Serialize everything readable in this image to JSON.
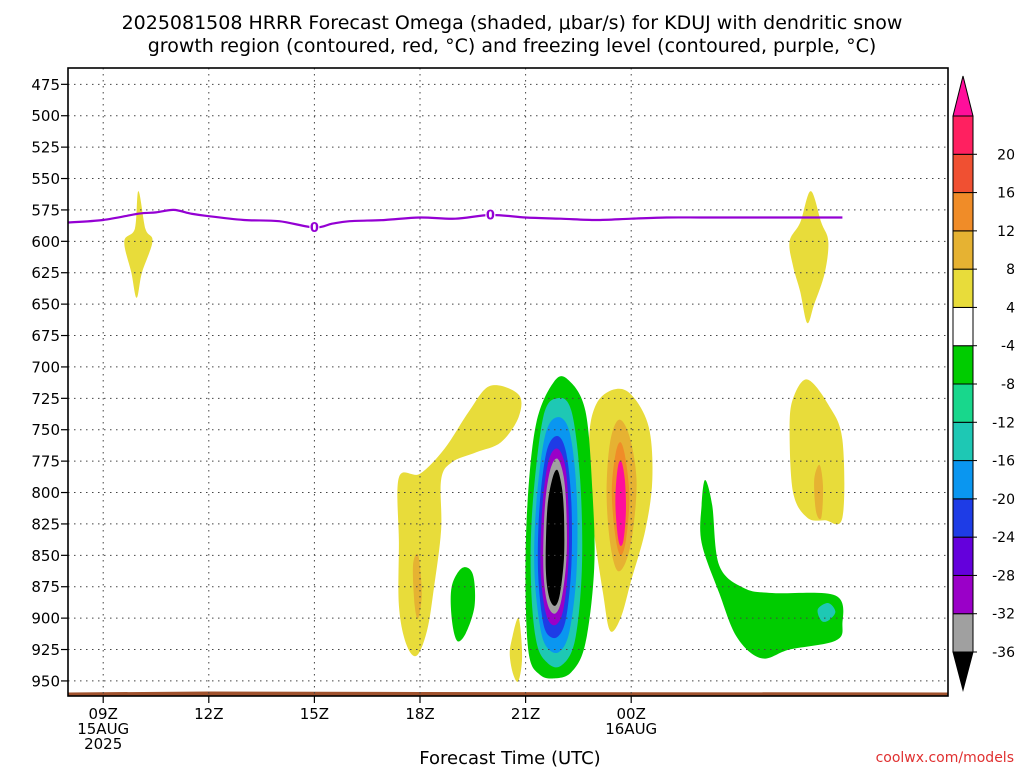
{
  "chart_data": {
    "type": "heatmap",
    "title_lines": [
      "2025081508 HRRR Forecast Omega (shaded, μbar/s) for KDUJ with dendritic snow",
      "growth region (contoured, red, °C) and freezing level (contoured, purple, °C)"
    ],
    "xlabel": "Forecast Time (UTC)",
    "xlim": [
      8,
      33
    ],
    "ylim": [
      962,
      462
    ],
    "y_scale": "linear pressure (hPa), inverted",
    "x_ticks": [
      {
        "x": 9,
        "lines": [
          "09Z",
          "15AUG",
          "2025"
        ]
      },
      {
        "x": 12,
        "lines": [
          "12Z"
        ]
      },
      {
        "x": 15,
        "lines": [
          "15Z"
        ]
      },
      {
        "x": 18,
        "lines": [
          "18Z"
        ]
      },
      {
        "x": 21,
        "lines": [
          "21Z"
        ]
      },
      {
        "x": 24,
        "lines": [
          "00Z",
          "16AUG"
        ]
      }
    ],
    "y_ticks": [
      475,
      500,
      525,
      550,
      575,
      600,
      625,
      650,
      675,
      700,
      725,
      750,
      775,
      800,
      825,
      850,
      875,
      900,
      925,
      950
    ],
    "grid": true,
    "colorbar": {
      "colors": [
        "#000000",
        "#a0a0a0",
        "#9a00c8",
        "#6400dc",
        "#1e3ce6",
        "#0a96f0",
        "#1ec8b4",
        "#18d78c",
        "#00cc00",
        "#ffffff",
        "#e8dc3a",
        "#e6b232",
        "#f08c28",
        "#f05032",
        "#ff2060",
        "#ff0f9b"
      ],
      "labels": [
        "-36",
        "-32",
        "-28",
        "-24",
        "-20",
        "-16",
        "-12",
        "-8",
        "-4",
        "4",
        "8",
        "12",
        "16",
        "20"
      ]
    },
    "omega_regions": [
      {
        "level": "4",
        "color": "#e8dc3a",
        "points": [
          [
            9.6,
            600
          ],
          [
            9.9,
            590
          ],
          [
            10.0,
            560
          ],
          [
            10.2,
            590
          ],
          [
            10.4,
            600
          ],
          [
            10.1,
            625
          ],
          [
            9.95,
            645
          ],
          [
            9.8,
            625
          ]
        ]
      },
      {
        "level": "4",
        "color": "#e8dc3a",
        "points": [
          [
            28.5,
            600
          ],
          [
            28.8,
            585
          ],
          [
            29.1,
            560
          ],
          [
            29.4,
            585
          ],
          [
            29.6,
            600
          ],
          [
            29.5,
            625
          ],
          [
            29.2,
            650
          ],
          [
            29.0,
            665
          ],
          [
            28.8,
            640
          ],
          [
            28.6,
            620
          ]
        ]
      },
      {
        "level": "4",
        "color": "#e8dc3a",
        "points": [
          [
            17.4,
            788
          ],
          [
            18.0,
            785
          ],
          [
            18.7,
            765
          ],
          [
            19.4,
            735
          ],
          [
            20.0,
            715
          ],
          [
            20.8,
            722
          ],
          [
            20.8,
            740
          ],
          [
            20.3,
            760
          ],
          [
            19.6,
            768
          ],
          [
            18.9,
            776
          ],
          [
            18.6,
            790
          ],
          [
            18.6,
            830
          ],
          [
            18.4,
            875
          ],
          [
            18.2,
            910
          ],
          [
            17.9,
            930
          ],
          [
            17.6,
            920
          ],
          [
            17.4,
            890
          ],
          [
            17.4,
            840
          ]
        ]
      },
      {
        "level": "4",
        "color": "#e8dc3a",
        "points": [
          [
            20.6,
            918
          ],
          [
            20.8,
            900
          ],
          [
            20.9,
            930
          ],
          [
            20.8,
            950
          ],
          [
            20.65,
            945
          ],
          [
            20.55,
            930
          ]
        ]
      },
      {
        "level": "4",
        "color": "#e8dc3a",
        "points": [
          [
            22.8,
            760
          ],
          [
            23.0,
            730
          ],
          [
            23.5,
            718
          ],
          [
            24.0,
            722
          ],
          [
            24.5,
            748
          ],
          [
            24.6,
            790
          ],
          [
            24.4,
            830
          ],
          [
            24.0,
            870
          ],
          [
            23.7,
            900
          ],
          [
            23.4,
            910
          ],
          [
            23.2,
            880
          ],
          [
            22.9,
            820
          ]
        ]
      },
      {
        "level": "4",
        "color": "#e8dc3a",
        "points": [
          [
            28.5,
            750
          ],
          [
            28.6,
            725
          ],
          [
            29.0,
            710
          ],
          [
            29.6,
            730
          ],
          [
            30.0,
            758
          ],
          [
            30.0,
            820
          ],
          [
            29.5,
            822
          ],
          [
            29.0,
            820
          ],
          [
            28.6,
            800
          ]
        ]
      },
      {
        "level": "8",
        "color": "#e6b232",
        "points": [
          [
            23.3,
            800
          ],
          [
            23.4,
            760
          ],
          [
            23.65,
            742
          ],
          [
            23.95,
            755
          ],
          [
            24.15,
            790
          ],
          [
            24.05,
            830
          ],
          [
            23.85,
            855
          ],
          [
            23.6,
            862
          ],
          [
            23.4,
            840
          ]
        ]
      },
      {
        "level": "8",
        "color": "#e6b232",
        "points": [
          [
            17.8,
            858
          ],
          [
            17.95,
            850
          ],
          [
            18.05,
            880
          ],
          [
            17.95,
            900
          ],
          [
            17.85,
            890
          ]
        ]
      },
      {
        "level": "8",
        "color": "#e6b232",
        "points": [
          [
            29.2,
            790
          ],
          [
            29.35,
            778
          ],
          [
            29.45,
            795
          ],
          [
            29.4,
            820
          ],
          [
            29.25,
            815
          ]
        ]
      },
      {
        "level": "12",
        "color": "#f08c28",
        "points": [
          [
            23.45,
            800
          ],
          [
            23.55,
            770
          ],
          [
            23.7,
            760
          ],
          [
            23.85,
            775
          ],
          [
            23.95,
            805
          ],
          [
            23.85,
            838
          ],
          [
            23.7,
            850
          ],
          [
            23.55,
            835
          ]
        ]
      },
      {
        "level": "16",
        "color": "#ff0f9b",
        "points": [
          [
            23.55,
            805
          ],
          [
            23.62,
            780
          ],
          [
            23.72,
            775
          ],
          [
            23.82,
            790
          ],
          [
            23.85,
            815
          ],
          [
            23.78,
            838
          ],
          [
            23.68,
            842
          ],
          [
            23.6,
            830
          ]
        ]
      },
      {
        "level": "-4",
        "color": "#00cc00",
        "points": [
          [
            18.9,
            875
          ],
          [
            19.2,
            860
          ],
          [
            19.5,
            865
          ],
          [
            19.55,
            890
          ],
          [
            19.3,
            912
          ],
          [
            19.05,
            918
          ],
          [
            18.9,
            900
          ]
        ]
      },
      {
        "level": "-4",
        "color": "#00cc00",
        "points": [
          [
            26.0,
            810
          ],
          [
            26.1,
            790
          ],
          [
            26.3,
            810
          ],
          [
            26.5,
            858
          ],
          [
            27.2,
            876
          ],
          [
            28.0,
            880
          ],
          [
            29.8,
            882
          ],
          [
            30.0,
            905
          ],
          [
            29.8,
            918
          ],
          [
            28.5,
            925
          ],
          [
            27.7,
            932
          ],
          [
            27.0,
            915
          ],
          [
            26.5,
            880
          ],
          [
            26.0,
            840
          ]
        ]
      },
      {
        "level": "-4",
        "color": "#00cc00",
        "points": [
          [
            21.0,
            880
          ],
          [
            21.05,
            810
          ],
          [
            21.3,
            745
          ],
          [
            21.8,
            712
          ],
          [
            22.2,
            710
          ],
          [
            22.7,
            735
          ],
          [
            22.9,
            800
          ],
          [
            22.95,
            860
          ],
          [
            22.7,
            920
          ],
          [
            22.3,
            943
          ],
          [
            21.8,
            948
          ],
          [
            21.4,
            945
          ],
          [
            21.1,
            930
          ]
        ]
      },
      {
        "level": "-12",
        "color": "#1ec8b4",
        "points": [
          [
            21.15,
            870
          ],
          [
            21.2,
            810
          ],
          [
            21.5,
            740
          ],
          [
            21.9,
            725
          ],
          [
            22.3,
            735
          ],
          [
            22.55,
            790
          ],
          [
            22.6,
            860
          ],
          [
            22.4,
            918
          ],
          [
            22.0,
            938
          ],
          [
            21.6,
            935
          ],
          [
            21.3,
            918
          ]
        ]
      },
      {
        "level": "-12",
        "color": "#1ec8b4",
        "points": [
          [
            29.3,
            893
          ],
          [
            29.6,
            888
          ],
          [
            29.8,
            895
          ],
          [
            29.6,
            902
          ],
          [
            29.4,
            902
          ]
        ]
      },
      {
        "level": "-16",
        "color": "#0a96f0",
        "points": [
          [
            21.25,
            862
          ],
          [
            21.3,
            810
          ],
          [
            21.55,
            755
          ],
          [
            21.9,
            740
          ],
          [
            22.25,
            752
          ],
          [
            22.45,
            800
          ],
          [
            22.45,
            862
          ],
          [
            22.25,
            910
          ],
          [
            21.95,
            927
          ],
          [
            21.6,
            923
          ],
          [
            21.4,
            905
          ]
        ]
      },
      {
        "level": "-20",
        "color": "#1e3ce6",
        "points": [
          [
            21.35,
            858
          ],
          [
            21.4,
            810
          ],
          [
            21.6,
            767
          ],
          [
            21.9,
            755
          ],
          [
            22.15,
            768
          ],
          [
            22.3,
            808
          ],
          [
            22.3,
            858
          ],
          [
            22.15,
            900
          ],
          [
            21.9,
            915
          ],
          [
            21.6,
            912
          ],
          [
            21.45,
            895
          ]
        ]
      },
      {
        "level": "-28",
        "color": "#9a00c8",
        "points": [
          [
            21.42,
            855
          ],
          [
            21.48,
            810
          ],
          [
            21.65,
            775
          ],
          [
            21.9,
            765
          ],
          [
            22.12,
            778
          ],
          [
            22.22,
            812
          ],
          [
            22.22,
            855
          ],
          [
            22.08,
            892
          ],
          [
            21.88,
            905
          ],
          [
            21.65,
            902
          ],
          [
            21.5,
            885
          ]
        ]
      },
      {
        "level": "-32",
        "color": "#a0a0a0",
        "points": [
          [
            21.5,
            852
          ],
          [
            21.55,
            810
          ],
          [
            21.7,
            782
          ],
          [
            21.9,
            773
          ],
          [
            22.08,
            787
          ],
          [
            22.16,
            815
          ],
          [
            22.16,
            853
          ],
          [
            22.02,
            885
          ],
          [
            21.86,
            896
          ],
          [
            21.68,
            893
          ],
          [
            21.55,
            878
          ]
        ]
      },
      {
        "level": "-36",
        "color": "#000000",
        "points": [
          [
            21.57,
            850
          ],
          [
            21.62,
            812
          ],
          [
            21.75,
            790
          ],
          [
            21.9,
            782
          ],
          [
            22.03,
            796
          ],
          [
            22.09,
            818
          ],
          [
            22.09,
            852
          ],
          [
            21.98,
            880
          ],
          [
            21.85,
            890
          ],
          [
            21.7,
            886
          ],
          [
            21.6,
            872
          ]
        ]
      }
    ],
    "freezing_level": {
      "color": "#9400d3",
      "label": "0",
      "label_points": [
        [
          15.0,
          589
        ],
        [
          20.0,
          579
        ]
      ],
      "points": [
        [
          8,
          585
        ],
        [
          9,
          583
        ],
        [
          10,
          578
        ],
        [
          10.5,
          577
        ],
        [
          11.0,
          575
        ],
        [
          11.5,
          578
        ],
        [
          12,
          580
        ],
        [
          13,
          583
        ],
        [
          14,
          584
        ],
        [
          15,
          589
        ],
        [
          15.5,
          586
        ],
        [
          16,
          584
        ],
        [
          17,
          583
        ],
        [
          18,
          581
        ],
        [
          19,
          582
        ],
        [
          20,
          579
        ],
        [
          21,
          581
        ],
        [
          22,
          582
        ],
        [
          23,
          583
        ],
        [
          24,
          582
        ],
        [
          25,
          581
        ],
        [
          26,
          581
        ],
        [
          27,
          581
        ],
        [
          28,
          581
        ],
        [
          30,
          581
        ]
      ]
    },
    "terrain": {
      "color": "#a0522d",
      "base_pressure": 960
    }
  },
  "credit": "coolwx.com/models"
}
